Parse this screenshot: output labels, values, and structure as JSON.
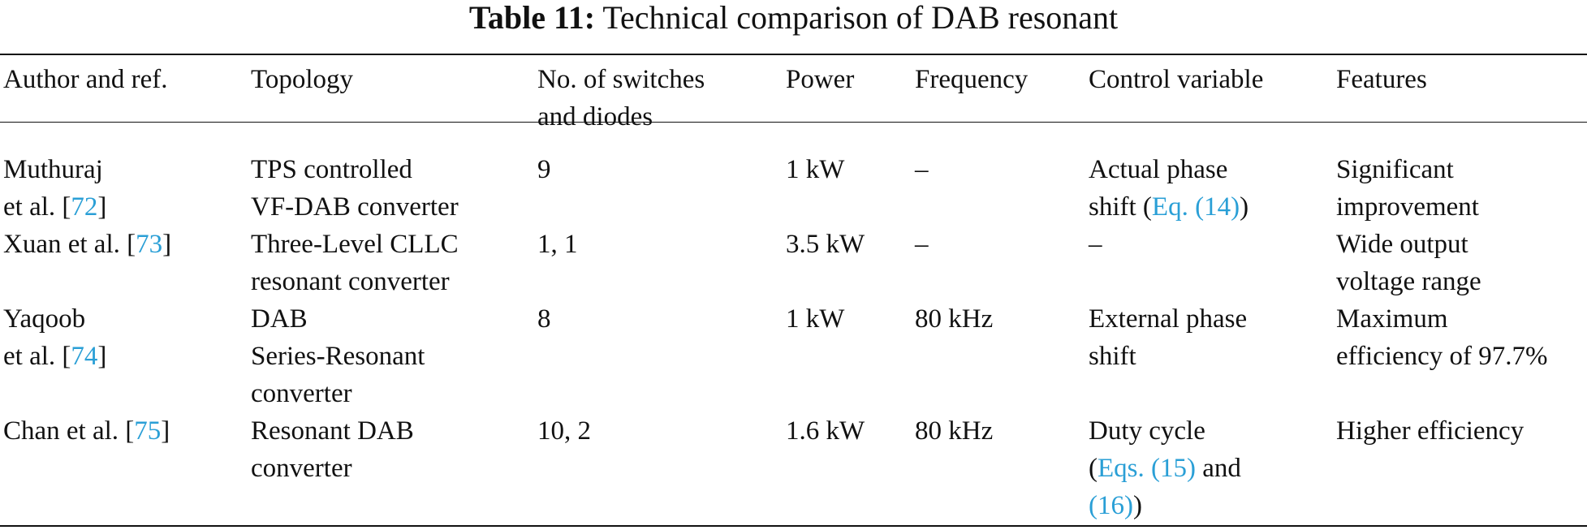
{
  "caption": {
    "label": "Table 11:",
    "text": "Technical comparison of DAB resonant"
  },
  "headers": [
    "Author and ref.",
    "Topology",
    "No. of switches\nand diodes",
    "Power",
    "Frequency",
    "Control variable",
    "Features"
  ],
  "rows": [
    {
      "author_pre": "Muthuraj\net al. [",
      "author_ref": "72",
      "author_post": "]",
      "topology": "TPS controlled\nVF-DAB converter",
      "switches": "9",
      "power": "1 kW",
      "frequency": "–",
      "control_pre": "Actual phase\nshift (",
      "control_ref1": "Eq. (14)",
      "control_post": ")",
      "features": "Significant\nimprovement"
    },
    {
      "author_pre": "Xuan et al. [",
      "author_ref": "73",
      "author_post": "]",
      "topology": "Three-Level CLLC\nresonant converter",
      "switches": "1, 1",
      "power": "3.5 kW",
      "frequency": "–",
      "control": "–",
      "features": "Wide output\nvoltage range"
    },
    {
      "author_pre": "Yaqoob\net al. [",
      "author_ref": "74",
      "author_post": "]",
      "topology": "DAB\nSeries-Resonant\nconverter",
      "switches": "8",
      "power": "1 kW",
      "frequency": "80 kHz",
      "control": "External phase\nshift",
      "features": "Maximum\nefficiency of 97.7%"
    },
    {
      "author_pre": "Chan et al. [",
      "author_ref": "75",
      "author_post": "]",
      "topology": "Resonant DAB\nconverter",
      "switches": "10, 2",
      "power": "1.6 kW",
      "frequency": "80 kHz",
      "control_pre": "Duty cycle\n(",
      "control_ref1": "Eqs. (15)",
      "control_mid": " and\n",
      "control_ref2": "(16)",
      "control_post": ")",
      "features": "Higher efficiency"
    }
  ],
  "colors": {
    "text": "#111111",
    "citation": "#2a9fd6"
  }
}
